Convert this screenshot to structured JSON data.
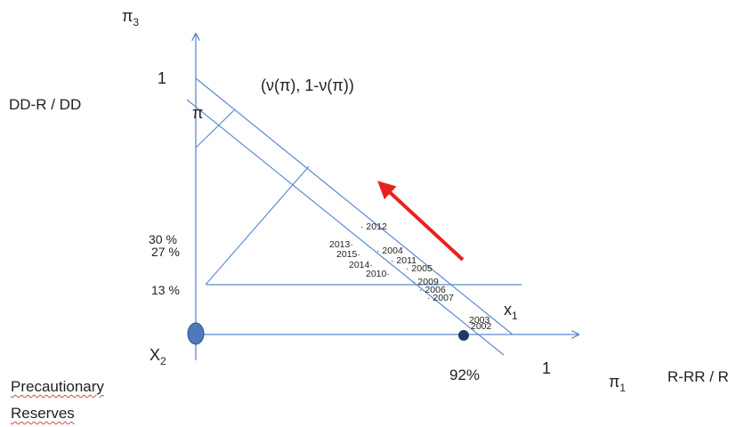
{
  "axes": {
    "pi3": {
      "symbol": "π",
      "sub": "3"
    },
    "pi1": {
      "symbol": "π",
      "sub": "1"
    },
    "ratio_left": "DD-R / DD",
    "ratio_right": "R-RR / R"
  },
  "ticks": {
    "y_one": "1",
    "x_one": "1",
    "y30": "30 %",
    "y27": "27 %",
    "y13": "13 %",
    "x92": "92%"
  },
  "labels": {
    "pi": "π",
    "v_label": "(ν(π), 1-ν(π))",
    "x1": {
      "base": "x",
      "sub": "1"
    },
    "x2": {
      "base": "X",
      "sub": "2"
    },
    "precautionary_1": "Precautionary",
    "precautionary_2": "Reserves"
  },
  "points": [
    {
      "year": "2012",
      "dot": "·"
    },
    {
      "year": "2013",
      "dot": "·"
    },
    {
      "year": "2004",
      "dot": "·"
    },
    {
      "year": "2015",
      "dot": "·"
    },
    {
      "year": "2011",
      "dot": "·"
    },
    {
      "year": "2014",
      "dot": "·"
    },
    {
      "year": "2005",
      "dot": "·"
    },
    {
      "year": "2010",
      "dot": "·"
    },
    {
      "year": "2009",
      "dot": "·"
    },
    {
      "year": "2006",
      "dot": "·"
    },
    {
      "year": "2007",
      "dot": "·"
    },
    {
      "year": "2003",
      "dot": ""
    },
    {
      "year": "2002",
      "dot": ""
    }
  ],
  "colors": {
    "axis": "#5b8bd0",
    "arrow": "#e8231f",
    "origin_marker": "#4f79b8",
    "point_92": "#1f3a63",
    "text": "#222222"
  }
}
